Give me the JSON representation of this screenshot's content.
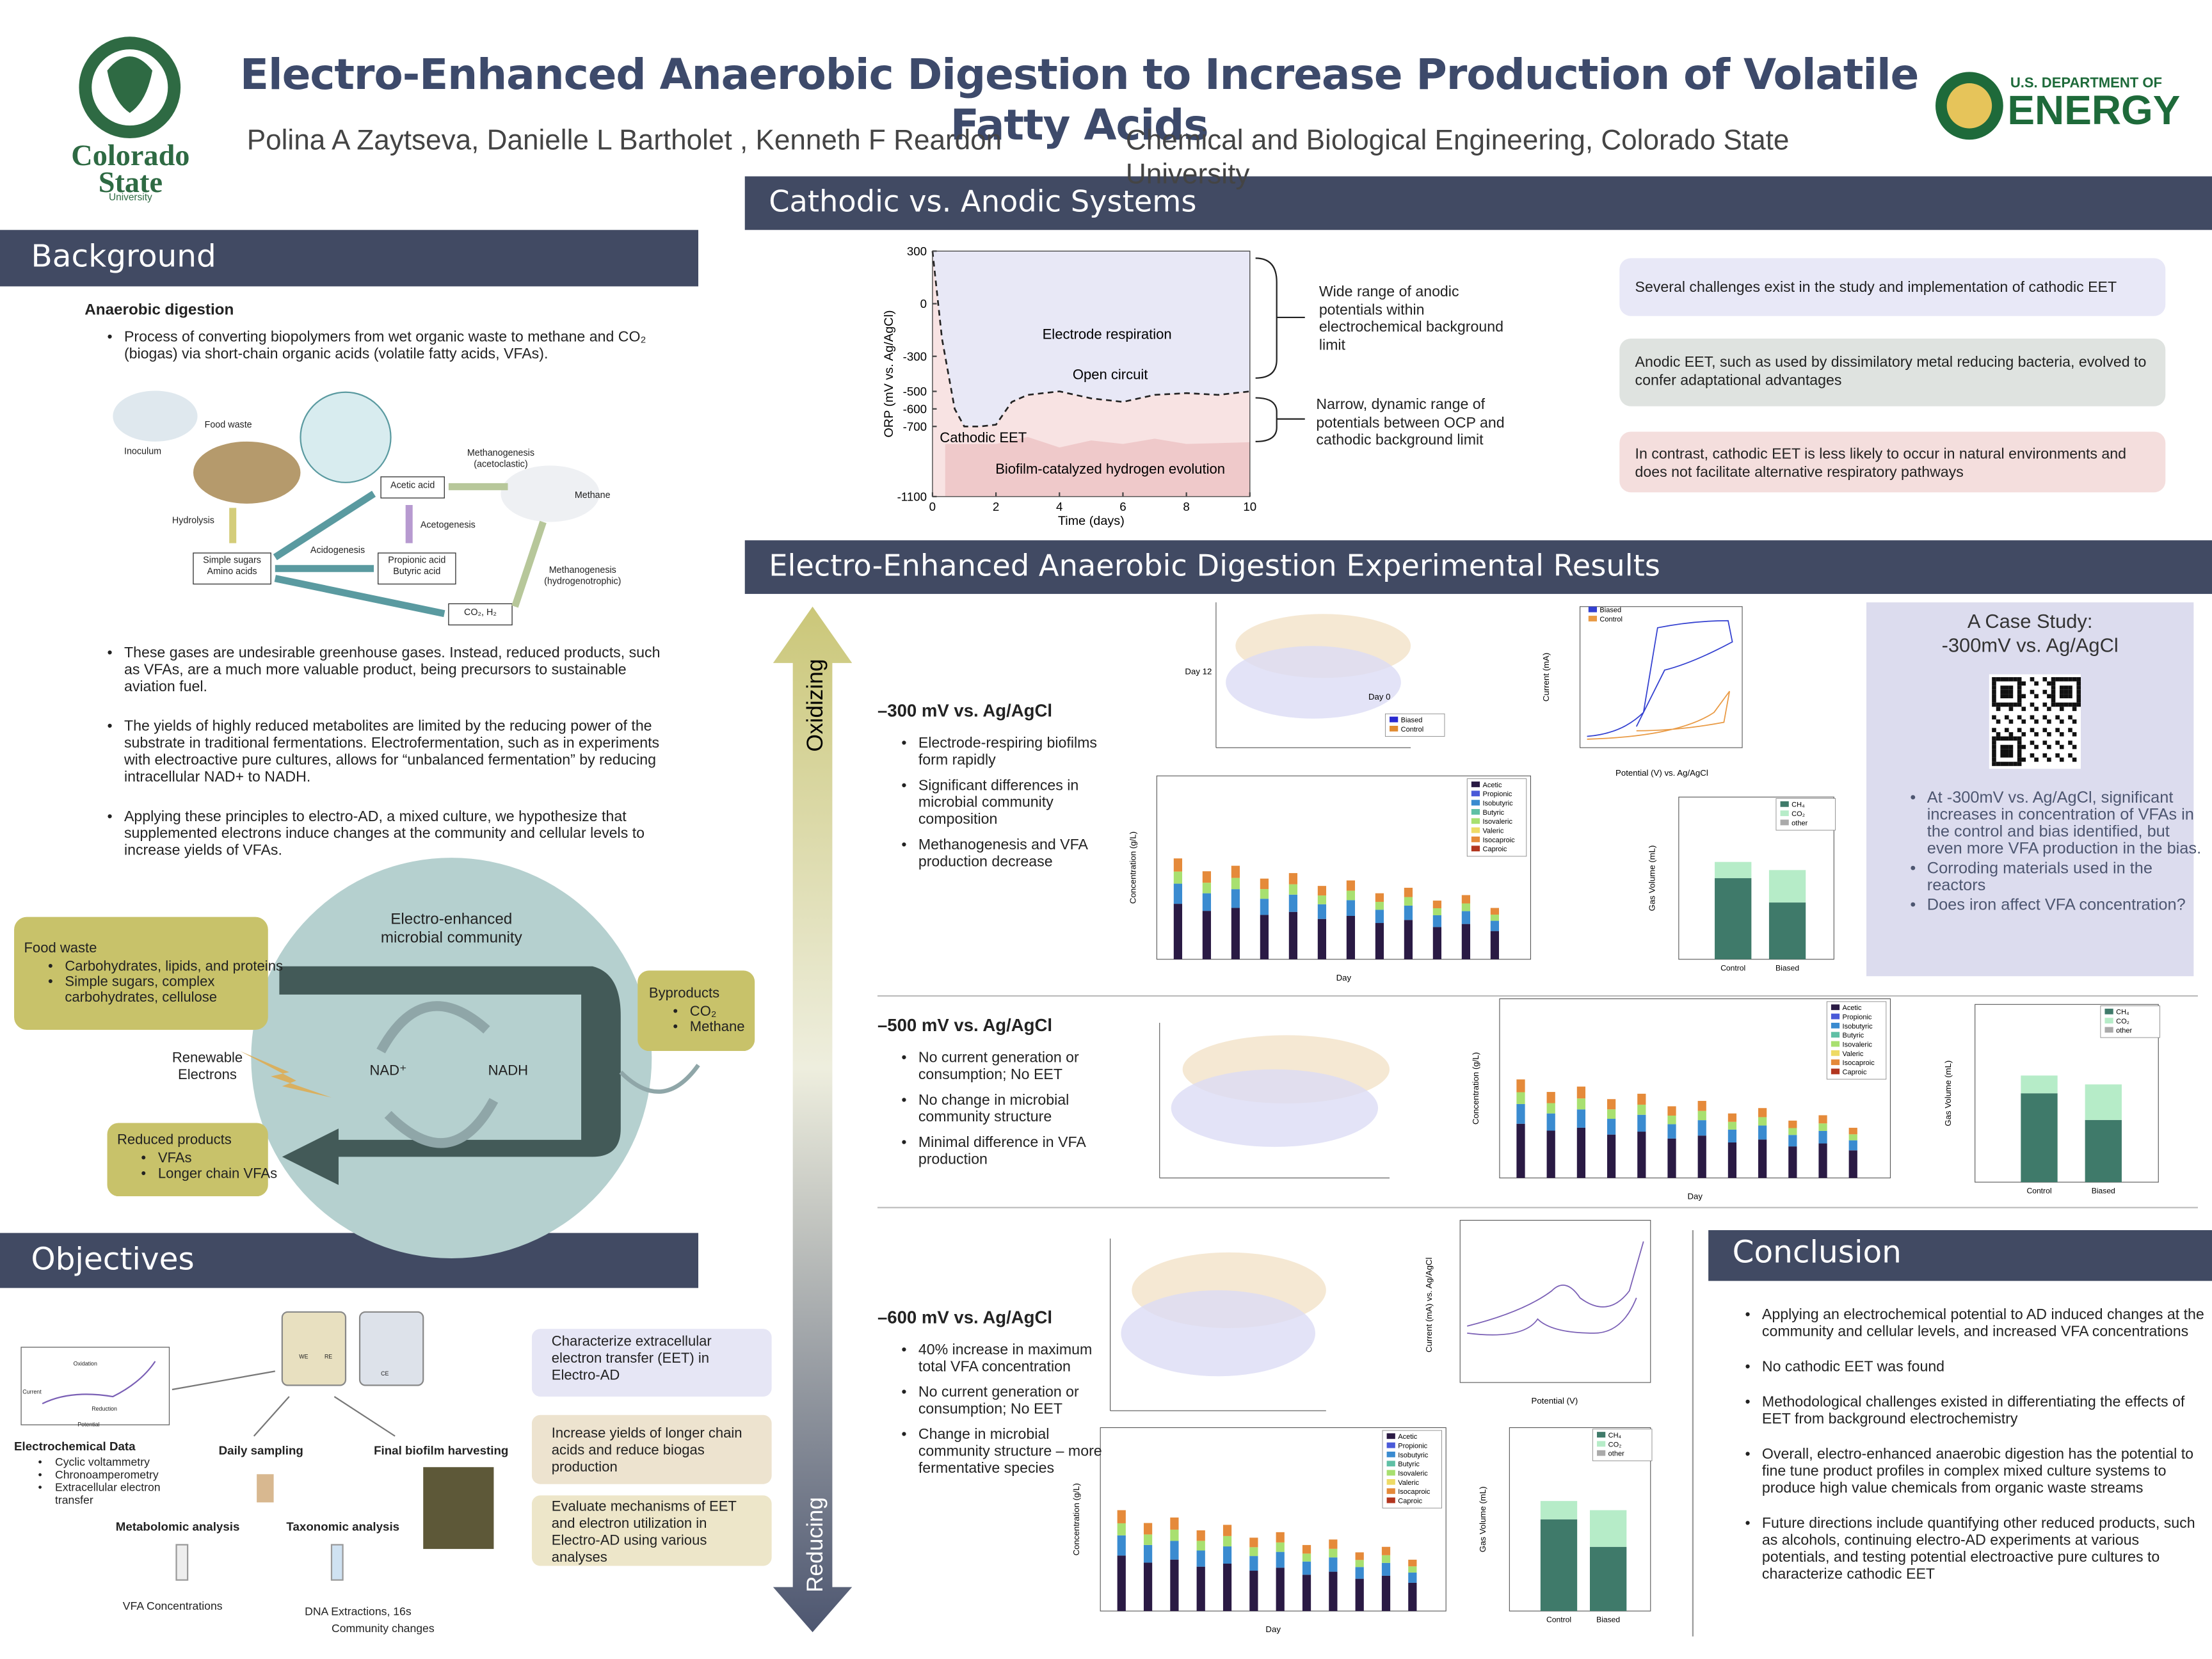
{
  "header": {
    "title": "Electro-Enhanced Anaerobic Digestion to Increase Production of Volatile Fatty Acids",
    "authors": "Polina A Zaytseva, Danielle L Bartholet , Kenneth F Reardon",
    "affiliation": "Chemical and Biological Engineering, Colorado State University",
    "csu_logo": [
      "Colorado",
      "State",
      "University"
    ],
    "doe_logo": [
      "U.S. DEPARTMENT OF",
      "ENERGY"
    ]
  },
  "background": {
    "heading": "Background",
    "subheading": "Anaerobic digestion",
    "bullets_top": [
      "Process of converting biopolymers from wet organic waste to methane and CO₂ (biogas) via short-chain organic acids (volatile fatty acids, VFAs)."
    ],
    "diagram": {
      "food_waste": "Food waste",
      "inoculum": "Inoculum",
      "hydrolysis": "Hydrolysis",
      "sugars": "Simple sugars\nAmino acids",
      "acidogenesis": "Acidogenesis",
      "acetic": "Acetic acid",
      "acetogenesis": "Acetogenesis",
      "propionic": "Propionic acid\nButyric acid",
      "co2": "CO₂, H₂",
      "meth_acet": "Methanogenesis\n(acetoclastic)",
      "methane": "Methane",
      "meth_hydro": "Methanogenesis\n(hydrogenotrophic)"
    },
    "bullets": [
      "These gases are undesirable greenhouse gases. Instead, reduced products, such as VFAs, are a much more valuable product, being precursors to sustainable aviation fuel.",
      "The yields of highly reduced metabolites are limited by the reducing power of the substrate in traditional fermentations. Electrofermentation, such as in experiments with electroactive pure cultures, allows for “unbalanced fermentation” by reducing intracellular NAD+ to NADH.",
      "Applying these principles to electro-AD, a mixed culture, we hypothesize that supplemented electrons induce changes at the community and cellular levels to increase yields of VFAs."
    ]
  },
  "cycle": {
    "community": "Electro-enhanced\nmicrobial community",
    "food_title": "Food waste",
    "food_items": [
      "Carbohydrates, lipids, and proteins",
      "Simple sugars, complex carbohydrates, cellulose"
    ],
    "byproducts_title": "Byproducts",
    "byproducts_items": [
      "CO₂",
      "Methane"
    ],
    "reduced_title": "Reduced products",
    "reduced_items": [
      "VFAs",
      "Longer chain VFAs"
    ],
    "electrons": "Renewable\nElectrons",
    "nad": "NAD⁺",
    "nadh": "NADH"
  },
  "objectives": {
    "heading": "Objectives",
    "boxes": [
      "Characterize extracellular electron transfer (EET) in Electro-AD",
      "Increase yields of longer chain acids and reduce biogas production",
      "Evaluate mechanisms of EET and electron utilization in Electro-AD using various analyses"
    ],
    "electrochem_title": "Electrochemical Data",
    "electrochem_items": [
      "Cyclic voltammetry",
      "Chronoamperometry",
      "Extracellular electron transfer"
    ],
    "cv_labels": [
      "Oxidation",
      "Reduction",
      "Current",
      "Potential"
    ],
    "daily": "Daily sampling",
    "harvest": "Final biofilm harvesting",
    "metabolomic": "Metabolomic analysis",
    "taxonomic": "Taxonomic analysis",
    "vfa": "VFA Concentrations",
    "dna": "DNA Extractions, 16s",
    "community": "Community changes",
    "reactor": [
      "WE",
      "RE",
      "CE"
    ]
  },
  "cathodic": {
    "heading": "Cathodic vs. Anodic Systems",
    "chart": {
      "y_title": "ORP (mV vs. Ag/AgCl)",
      "x_title": "Time (days)",
      "ylim": [
        -1100,
        300
      ],
      "yticks": [
        300,
        0,
        -300,
        -500,
        -600,
        -700,
        -1100
      ],
      "xlim": [
        0,
        10
      ],
      "xticks": [
        0,
        2,
        4,
        6,
        8,
        10
      ],
      "labels": {
        "respiration": "Electrode respiration",
        "open_circuit": "Open circuit",
        "cathodic_eet": "Cathodic EET",
        "hydrogen": "Biofilm-catalyzed hydrogen evolution"
      }
    },
    "annot_wide": "Wide range of anodic potentials within electrochemical background limit",
    "annot_narrow": "Narrow, dynamic range of potentials between OCP and cathodic background limit",
    "boxes": [
      "Several challenges exist in the study and implementation of cathodic EET",
      "Anodic EET, such as used by dissimilatory metal reducing bacteria, evolved to confer adaptational advantages",
      "In contrast, cathodic EET is less likely to occur in natural environments and does not facilitate alternative respiratory pathways"
    ]
  },
  "results": {
    "heading": "Electro-Enhanced Anaerobic Digestion Experimental Results",
    "oxidizing": "Oxidizing",
    "reducing": "Reducing",
    "panels": [
      {
        "title": "–300 mV vs. Ag/AgCl",
        "bullets": [
          "Electrode-respiring biofilms form rapidly",
          "Significant differences in microbial community composition",
          "Methanogenesis and VFA production decrease"
        ]
      },
      {
        "title": "–500 mV vs. Ag/AgCl",
        "bullets": [
          "No current generation or consumption; No EET",
          "No change in microbial community structure",
          "Minimal difference in VFA production"
        ]
      },
      {
        "title": "–600 mV vs. Ag/AgCl",
        "bullets": [
          "40% increase in maximum total VFA concentration",
          "No current generation or consumption; No EET",
          "Change in microbial community structure – more fermentative species"
        ]
      }
    ],
    "charts": {
      "pca_labels": {
        "day12": "Day 12",
        "day0": "Day 0",
        "legend": [
          "Biased",
          "Control"
        ]
      },
      "cv1": {
        "y_title": "Current (mA)",
        "x_title": "Potential (V) vs. Ag/AgCl",
        "legend": [
          "Biased",
          "Control"
        ]
      },
      "cv3": {
        "y_title": "Current (mA) vs. Ag/AgCl",
        "x_title": "Potential (V)"
      },
      "conc": {
        "y_title": "Concentration (g/L)",
        "x_title": "Day",
        "legend": [
          "Acetic",
          "Propionic",
          "Isobutyric",
          "Butyric",
          "Isovaleric",
          "Valeric",
          "Isocaproic",
          "Caproic"
        ]
      },
      "gas": {
        "y_title": "Gas Volume (mL)",
        "categories": [
          "Control",
          "Biased"
        ],
        "legend": [
          "CH₄",
          "CO₂",
          "other"
        ]
      }
    },
    "case_study": {
      "title": "A Case Study:\n-300mV vs. Ag/AgCl",
      "bullets": [
        "At -300mV vs. Ag/AgCl, significant increases in concentration of VFAs in the control and bias identified, but even more VFA production in the bias.",
        "Corroding materials used in the reactors",
        "Does iron affect VFA concentration?"
      ]
    }
  },
  "conclusion": {
    "heading": "Conclusion",
    "bullets": [
      "Applying an electrochemical potential to AD induced changes at the community and cellular levels, and increased VFA concentrations",
      "No cathodic EET was found",
      "Methodological challenges existed in differentiating the effects of EET from background electrochemistry",
      "Overall, electro-enhanced anaerobic digestion has the potential to fine tune product profiles in complex mixed culture systems to produce high value chemicals from organic waste streams",
      "Future directions include quantifying other reduced products, such as alcohols, continuing electro-AD experiments at various potentials, and testing potential electroactive pure cultures to characterize cathodic EET"
    ]
  }
}
